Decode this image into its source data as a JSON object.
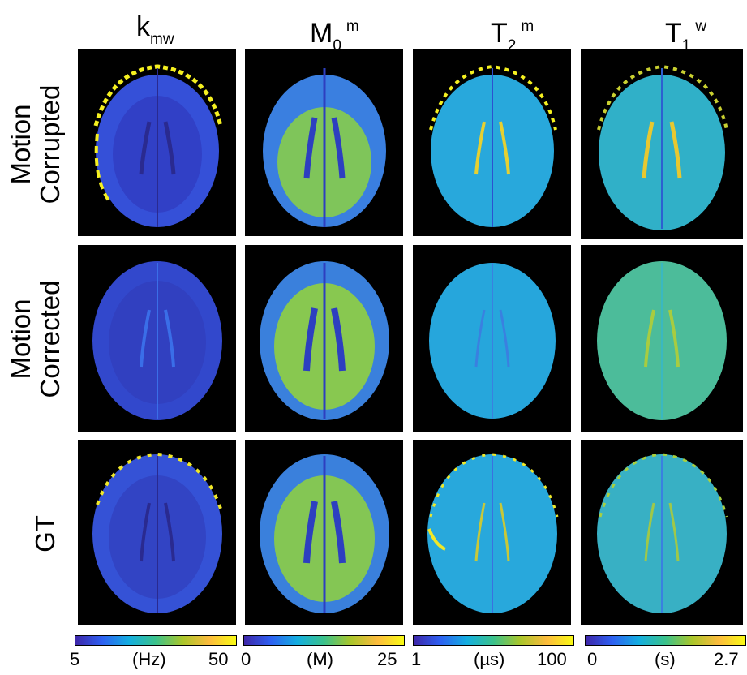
{
  "columns": [
    {
      "base": "k",
      "sub": "mw",
      "sup": ""
    },
    {
      "base": "M",
      "sub": "0",
      "sup": "m"
    },
    {
      "base": "T",
      "sub": "2",
      "sup": "m"
    },
    {
      "base": "T",
      "sub": "1",
      "sup": "w"
    }
  ],
  "rows": [
    {
      "line1": "Motion",
      "line2": "Corrupted"
    },
    {
      "line1": "Motion",
      "line2": "Corrected"
    },
    {
      "line1": "GT",
      "line2": ""
    }
  ],
  "colorbars": [
    {
      "min": "5",
      "unit": "(Hz)",
      "max": "50"
    },
    {
      "min": "0",
      "unit": "(M)",
      "max": "25"
    },
    {
      "min": "1",
      "unit": "(µs)",
      "max": "100"
    },
    {
      "min": "0",
      "unit": "(s)",
      "max": "2.7"
    }
  ],
  "colors": {
    "background": "#000000",
    "colormap": [
      "#3e26a8",
      "#2e60f2",
      "#14aee0",
      "#3bc28b",
      "#a9c62b",
      "#fcbb3d",
      "#f9fb15"
    ]
  }
}
